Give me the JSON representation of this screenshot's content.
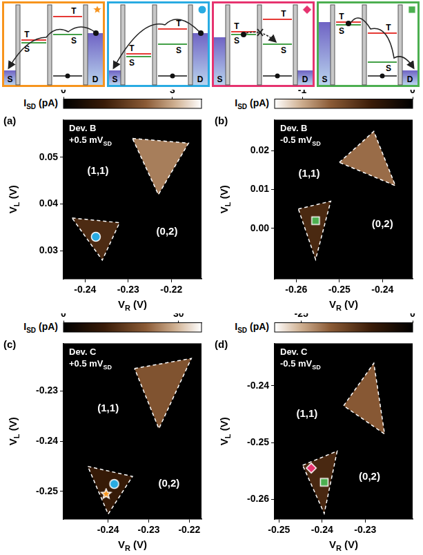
{
  "schematics": [
    {
      "color": "#f7941d",
      "marker": "star",
      "lead_labels": [
        "S",
        "D"
      ],
      "level_labels": [
        "T",
        "S",
        "T",
        "S"
      ],
      "blocked": false
    },
    {
      "color": "#29abe2",
      "marker": "circle",
      "lead_labels": [
        "S",
        "D"
      ],
      "level_labels": [
        "T",
        "S",
        "T",
        "S"
      ],
      "blocked": false
    },
    {
      "color": "#e6336f",
      "marker": "diamond",
      "lead_labels": [
        "S",
        "D"
      ],
      "level_labels": [
        "T",
        "S",
        "T",
        "S"
      ],
      "blocked": true
    },
    {
      "color": "#4caf50",
      "marker": "square",
      "lead_labels": [
        "S",
        "D"
      ],
      "level_labels": [
        "T",
        "S",
        "T",
        "S"
      ],
      "blocked": false
    }
  ],
  "chart_data": [
    {
      "type": "heatmap",
      "panel": "(a)",
      "device": "Dev. B",
      "bias": [
        {
          "text": "+0.5 mV"
        },
        {
          "text": "SD",
          "sub": true
        }
      ],
      "x_label": [
        {
          "text": "V"
        },
        {
          "text": "R",
          "sub": true
        },
        {
          "text": " (V)"
        }
      ],
      "y_label": [
        {
          "text": "V"
        },
        {
          "text": "L",
          "sub": true
        },
        {
          "text": " (V)"
        }
      ],
      "xlim": [
        -0.245,
        -0.213
      ],
      "xticks": [
        -0.24,
        -0.23,
        -0.22
      ],
      "ylim": [
        0.024,
        0.058
      ],
      "yticks": [
        0.03,
        0.04,
        0.05
      ],
      "colorbar": {
        "label": [
          {
            "text": "I"
          },
          {
            "text": "SD",
            "sub": true
          },
          {
            "text": " (pA)"
          }
        ],
        "range": [
          0,
          3.8
        ],
        "ticks": [
          0,
          3
        ]
      },
      "line_style": "dashed",
      "regions": [
        {
          "vertices": [
            [
              -0.229,
              0.054
            ],
            [
              -0.216,
              0.053
            ],
            [
              -0.223,
              0.042
            ]
          ],
          "current": 2.6
        },
        {
          "vertices": [
            [
              -0.243,
              0.037
            ],
            [
              -0.232,
              0.036
            ],
            [
              -0.236,
              0.028
            ]
          ],
          "current": 1.4
        }
      ],
      "annotations": [
        {
          "text": "(1,1)",
          "x": -0.237,
          "y": 0.047
        },
        {
          "text": "(0,2)",
          "x": -0.221,
          "y": 0.034
        }
      ],
      "markers": [
        {
          "x": -0.2375,
          "y": 0.033,
          "marker": "circle",
          "color": "#29abe2"
        }
      ]
    },
    {
      "type": "heatmap",
      "panel": "(b)",
      "device": "Dev. B",
      "bias": [
        {
          "text": "-0.5 mV"
        },
        {
          "text": "SD",
          "sub": true
        }
      ],
      "x_label": [
        {
          "text": "V"
        },
        {
          "text": "R",
          "sub": true
        },
        {
          "text": " (V)"
        }
      ],
      "y_label": [
        {
          "text": "V"
        },
        {
          "text": "L",
          "sub": true
        },
        {
          "text": " (V)"
        }
      ],
      "xlim": [
        -0.265,
        -0.233
      ],
      "xticks": [
        -0.26,
        -0.25,
        -0.24
      ],
      "ylim": [
        -0.013,
        0.028
      ],
      "yticks": [
        {
          "value": 0,
          "label": "0.00"
        },
        0.01,
        0.02
      ],
      "colorbar": {
        "label": [
          {
            "text": "I"
          },
          {
            "text": "SD",
            "sub": true
          },
          {
            "text": " (pA)"
          }
        ],
        "range": [
          -1.25,
          0
        ],
        "ticks": [
          -1,
          0
        ]
      },
      "line_style": "dashed",
      "regions": [
        {
          "vertices": [
            [
              -0.25,
              0.017
            ],
            [
              -0.242,
              0.025
            ],
            [
              -0.237,
              0.011
            ]
          ],
          "current": -0.8
        },
        {
          "vertices": [
            [
              -0.2595,
              0.005
            ],
            [
              -0.252,
              0.007
            ],
            [
              -0.2555,
              -0.008
            ]
          ],
          "current": -0.45
        }
      ],
      "annotations": [
        {
          "text": "(1,1)",
          "x": -0.257,
          "y": 0.014
        },
        {
          "text": "(0,2)",
          "x": -0.24,
          "y": 0.001
        }
      ],
      "markers": [
        {
          "x": -0.2555,
          "y": 0.002,
          "marker": "square",
          "color": "#4caf50"
        }
      ]
    },
    {
      "type": "heatmap",
      "panel": "(c)",
      "device": "Dev. C",
      "bias": [
        {
          "text": "+0.5 mV"
        },
        {
          "text": "SD",
          "sub": true
        }
      ],
      "x_label": [
        {
          "text": "V"
        },
        {
          "text": "R",
          "sub": true
        },
        {
          "text": " (V)"
        }
      ],
      "y_label": [
        {
          "text": "V"
        },
        {
          "text": "L",
          "sub": true
        },
        {
          "text": " (V)"
        }
      ],
      "xlim": [
        -0.251,
        -0.217
      ],
      "xticks": [
        -0.24,
        -0.23,
        -0.22
      ],
      "ylim": [
        -0.2555,
        -0.2205
      ],
      "yticks": [
        -0.25,
        -0.24,
        -0.23
      ],
      "colorbar": {
        "label": [
          {
            "text": "I"
          },
          {
            "text": "SD",
            "sub": true
          },
          {
            "text": " (pA)"
          }
        ],
        "range": [
          0,
          36
        ],
        "ticks": [
          0,
          30
        ]
      },
      "line_style": "dashed",
      "regions": [
        {
          "vertices": [
            [
              -0.2335,
              -0.2255
            ],
            [
              -0.2195,
              -0.2235
            ],
            [
              -0.2275,
              -0.2375
            ]
          ],
          "current": 20
        },
        {
          "vertices": [
            [
              -0.245,
              -0.245
            ],
            [
              -0.234,
              -0.247
            ],
            [
              -0.24,
              -0.2545
            ]
          ],
          "current": 10
        }
      ],
      "annotations": [
        {
          "text": "(1,1)",
          "x": -0.24,
          "y": -0.2335
        },
        {
          "text": "(0,2)",
          "x": -0.225,
          "y": -0.2485
        }
      ],
      "markers": [
        {
          "x": -0.2385,
          "y": -0.2485,
          "marker": "circle",
          "color": "#29abe2"
        },
        {
          "x": -0.2405,
          "y": -0.2505,
          "marker": "star",
          "color": "#f7941d"
        }
      ]
    },
    {
      "type": "heatmap",
      "panel": "(d)",
      "device": "Dev. C",
      "bias": [
        {
          "text": "-0.5 mV"
        },
        {
          "text": "SD",
          "sub": true
        }
      ],
      "x_label": [
        {
          "text": "V"
        },
        {
          "text": "R",
          "sub": true
        },
        {
          "text": " (V)"
        }
      ],
      "y_label": [
        {
          "text": "V"
        },
        {
          "text": "L",
          "sub": true
        },
        {
          "text": " (V)"
        }
      ],
      "xlim": [
        -0.251,
        -0.219
      ],
      "xticks": [
        -0.25,
        -0.24,
        -0.23
      ],
      "ylim": [
        -0.2635,
        -0.2325
      ],
      "yticks": [
        -0.26,
        -0.25,
        -0.24
      ],
      "colorbar": {
        "label": [
          {
            "text": "I"
          },
          {
            "text": "SD",
            "sub": true
          },
          {
            "text": " (pA)"
          }
        ],
        "range": [
          -31,
          0
        ],
        "ticks": [
          -25,
          0
        ]
      },
      "line_style": "dashed",
      "regions": [
        {
          "vertices": [
            [
              -0.235,
              -0.2435
            ],
            [
              -0.228,
              -0.236
            ],
            [
              -0.2255,
              -0.2485
            ]
          ],
          "current": -18
        },
        {
          "vertices": [
            [
              -0.2445,
              -0.254
            ],
            [
              -0.2365,
              -0.2515
            ],
            [
              -0.2395,
              -0.2625
            ]
          ],
          "current": -11
        }
      ],
      "annotations": [
        {
          "text": "(1,1)",
          "x": -0.2435,
          "y": -0.245
        },
        {
          "text": "(0,2)",
          "x": -0.229,
          "y": -0.256
        }
      ],
      "markers": [
        {
          "x": -0.2425,
          "y": -0.2545,
          "marker": "diamond",
          "color": "#e6336f"
        },
        {
          "x": -0.2395,
          "y": -0.257,
          "marker": "square",
          "color": "#4caf50"
        }
      ]
    }
  ]
}
